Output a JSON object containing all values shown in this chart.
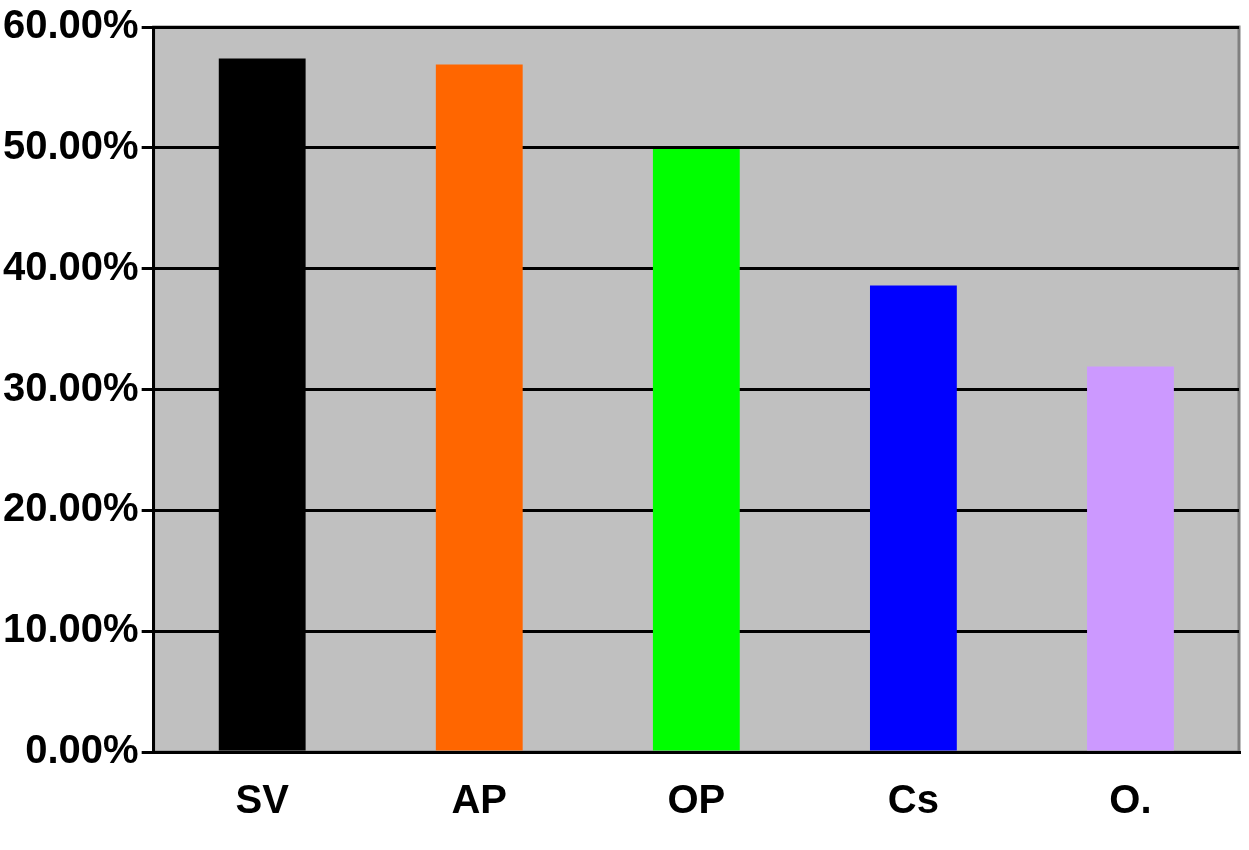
{
  "chart_data": {
    "type": "bar",
    "categories": [
      "SV",
      "AP",
      "OP",
      "Cs",
      "O."
    ],
    "values": [
      57.4,
      56.9,
      49.9,
      38.6,
      31.9
    ],
    "colors": [
      "#000000",
      "#ff6600",
      "#00ff00",
      "#0000ff",
      "#cc99ff"
    ],
    "ylim": [
      0,
      60
    ],
    "yticks": [
      {
        "value": 0,
        "label": "0.00%"
      },
      {
        "value": 10,
        "label": "10.00%"
      },
      {
        "value": 20,
        "label": "20.00%"
      },
      {
        "value": 30,
        "label": "30.00%"
      },
      {
        "value": 40,
        "label": "40.00%"
      },
      {
        "value": 50,
        "label": "50.00%"
      },
      {
        "value": 60,
        "label": "60.00%"
      }
    ],
    "grid": "y",
    "legend": false
  }
}
